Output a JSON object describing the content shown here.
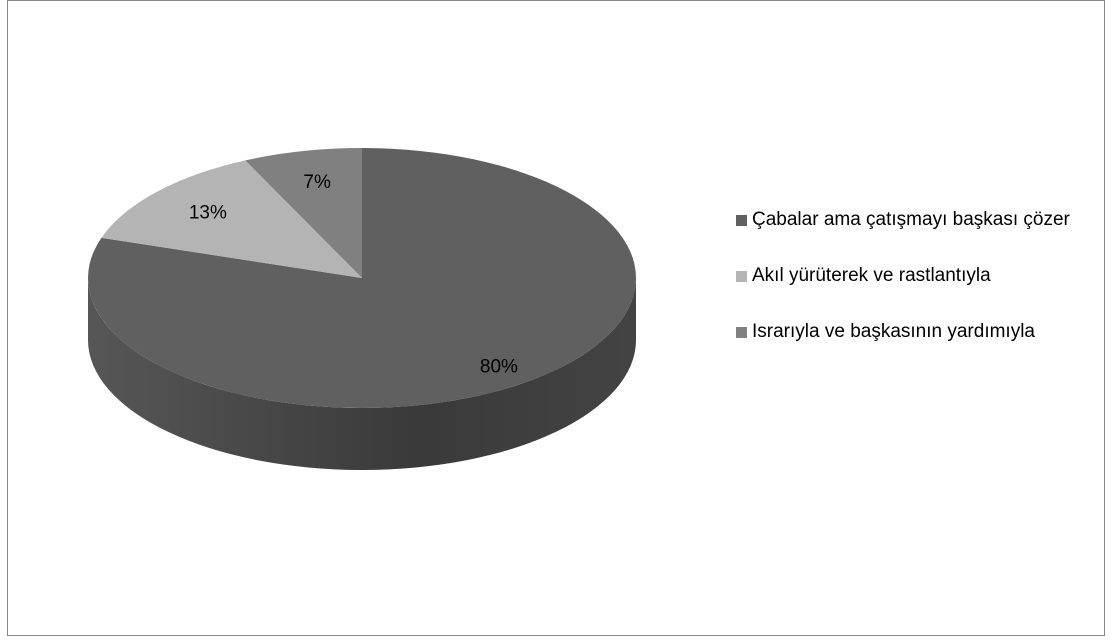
{
  "chart_data": {
    "type": "pie",
    "categories": [
      "Çabalar ama çatışmayı başkası çözer",
      "Akıl yürüterek ve rastlantıyla",
      "Israrıyla ve başkasının yardımıyla"
    ],
    "values": [
      80,
      13,
      7
    ],
    "value_labels": [
      "80%",
      "13%",
      "7%"
    ],
    "colors": [
      "#606060",
      "#b4b4b4",
      "#808080"
    ],
    "legend": "right"
  }
}
